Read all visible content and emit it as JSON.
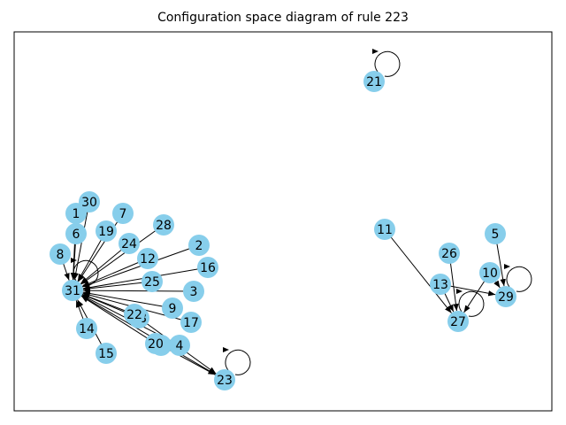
{
  "title": "Configuration space diagram of rule 223",
  "colors": {
    "node_fill": "#87ceeb",
    "edge": "#000000",
    "frame": "#000000",
    "background": "#ffffff"
  },
  "nodes": [
    "0",
    "1",
    "2",
    "3",
    "4",
    "5",
    "6",
    "7",
    "8",
    "9",
    "10",
    "11",
    "12",
    "13",
    "14",
    "15",
    "16",
    "17",
    "18",
    "19",
    "20",
    "21",
    "22",
    "23",
    "24",
    "25",
    "26",
    "27",
    "28",
    "29",
    "30",
    "31"
  ],
  "edges": [
    [
      "1",
      "31"
    ],
    [
      "2",
      "31"
    ],
    [
      "3",
      "31"
    ],
    [
      "4",
      "31"
    ],
    [
      "6",
      "31"
    ],
    [
      "7",
      "31"
    ],
    [
      "8",
      "31"
    ],
    [
      "9",
      "31"
    ],
    [
      "12",
      "31"
    ],
    [
      "14",
      "31"
    ],
    [
      "15",
      "31"
    ],
    [
      "16",
      "31"
    ],
    [
      "17",
      "31"
    ],
    [
      "18",
      "31"
    ],
    [
      "19",
      "31"
    ],
    [
      "20",
      "31"
    ],
    [
      "22",
      "31"
    ],
    [
      "24",
      "31"
    ],
    [
      "25",
      "31"
    ],
    [
      "28",
      "31"
    ],
    [
      "30",
      "31"
    ],
    [
      "31",
      "31"
    ],
    [
      "0",
      "23"
    ],
    [
      "18",
      "23"
    ],
    [
      "31",
      "23"
    ],
    [
      "23",
      "23"
    ],
    [
      "11",
      "27"
    ],
    [
      "26",
      "27"
    ],
    [
      "13",
      "27"
    ],
    [
      "10",
      "27"
    ],
    [
      "27",
      "27"
    ],
    [
      "5",
      "29"
    ],
    [
      "13",
      "29"
    ],
    [
      "10",
      "29"
    ],
    [
      "29",
      "29"
    ],
    [
      "21",
      "21"
    ]
  ]
}
